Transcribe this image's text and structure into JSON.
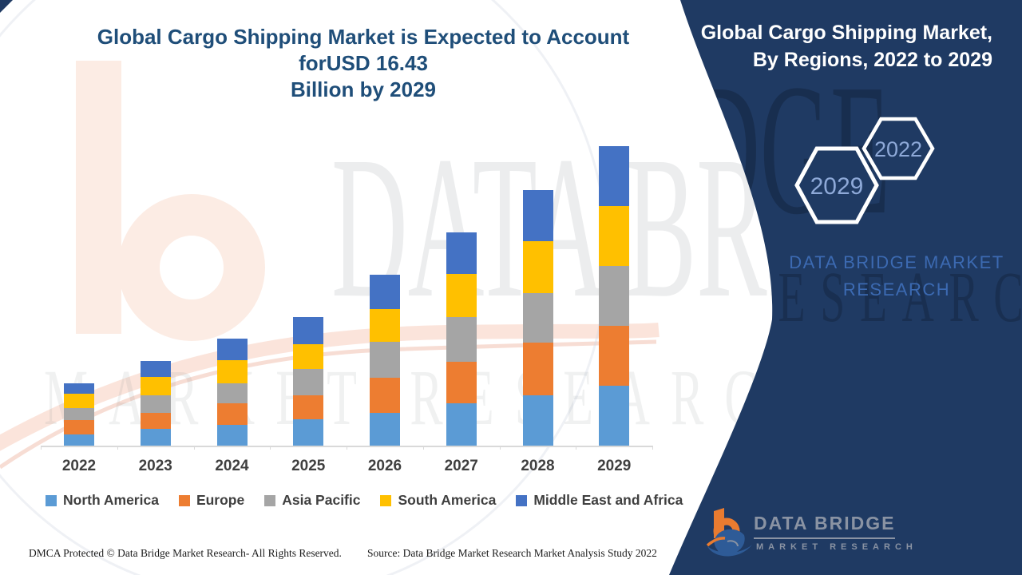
{
  "main_title": {
    "line1": "Global Cargo Shipping Market is Expected to Account forUSD 16.43",
    "line2": "Billion by 2029"
  },
  "panel": {
    "title_line1": "Global Cargo Shipping Market,",
    "title_line2": "By Regions, 2022 to 2029",
    "hexagons": [
      {
        "label": "2029"
      },
      {
        "label": "2022"
      }
    ],
    "brand_line1": "DATA BRIDGE MARKET",
    "brand_line2": "RESEARCH",
    "logo": {
      "name": "DATA BRIDGE",
      "sub": "MARKET RESEARCH",
      "icon": "dbmr-b-logo"
    }
  },
  "watermark": {
    "line1": "DATA BRIDGE",
    "line2": "MARKET RESEARCH"
  },
  "footer": {
    "left": "DMCA Protected © Data Bridge Market Research- All Rights Reserved.",
    "right": "Source: Data Bridge Market Research Market Analysis Study 2022"
  },
  "chart_data": {
    "type": "bar",
    "stacked": true,
    "title": "Global Cargo Shipping Market is Expected to Account forUSD 16.43 Billion by 2029",
    "xlabel": "",
    "ylabel": "",
    "unit": "USD Billion",
    "grid": false,
    "legend_position": "bottom",
    "categories": [
      "2022",
      "2023",
      "2024",
      "2025",
      "2026",
      "2027",
      "2028",
      "2029"
    ],
    "series": [
      {
        "name": "North America",
        "color": "#5B9BD5",
        "values": [
          0.61,
          0.92,
          1.14,
          1.45,
          1.8,
          2.32,
          2.76,
          3.29
        ]
      },
      {
        "name": "Europe",
        "color": "#ED7D31",
        "values": [
          0.79,
          0.88,
          1.18,
          1.31,
          1.93,
          2.28,
          2.89,
          3.29
        ]
      },
      {
        "name": "Asia Pacific",
        "color": "#A5A5A5",
        "values": [
          0.66,
          0.96,
          1.1,
          1.45,
          1.97,
          2.45,
          2.72,
          3.29
        ]
      },
      {
        "name": "South America",
        "color": "#FFC000",
        "values": [
          0.79,
          1.01,
          1.27,
          1.36,
          1.8,
          2.37,
          2.85,
          3.29
        ]
      },
      {
        "name": "Middle East and Africa",
        "color": "#4472C4",
        "values": [
          0.57,
          0.88,
          1.18,
          1.49,
          1.88,
          2.28,
          2.8,
          3.29
        ]
      }
    ],
    "totals_estimated": [
      3.42,
      4.65,
      5.87,
      7.06,
      9.38,
      11.7,
      14.02,
      16.43
    ],
    "colors": {
      "panel_navy": "#1F3A63",
      "title_blue": "#1F4E79",
      "brand_blue": "#3C6AB2",
      "hex_year_blue": "#8EA9D8",
      "logo_gray": "#8A93A3",
      "logo_orange": "#E87B30",
      "logo_swoosh_blue": "#2E5B97",
      "axis_gray": "#D9D9D9"
    }
  }
}
